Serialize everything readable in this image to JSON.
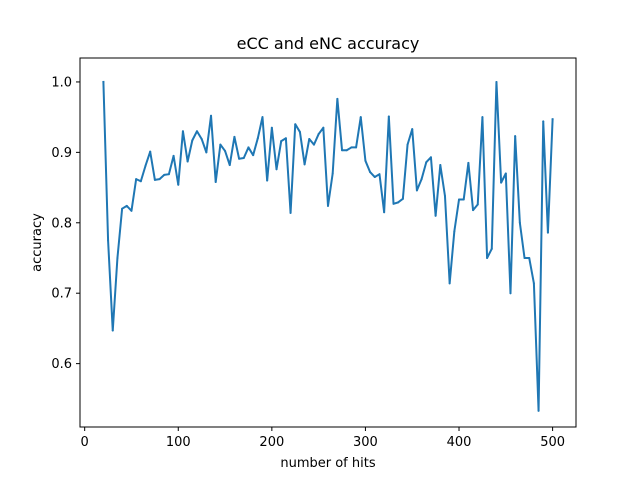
{
  "chart_data": {
    "type": "line",
    "title": "eCC and eNC accuracy",
    "xlabel": "number of hits",
    "ylabel": "accuracy",
    "xlim": [
      -5,
      525
    ],
    "ylim": [
      0.51,
      1.034
    ],
    "xticks": [
      0,
      100,
      200,
      300,
      400,
      500
    ],
    "yticks": [
      0.6,
      0.7,
      0.8,
      0.9,
      1.0
    ],
    "xtick_labels": [
      "0",
      "100",
      "200",
      "300",
      "400",
      "500"
    ],
    "ytick_labels": [
      "0.6",
      "0.7",
      "0.8",
      "0.9",
      "1.0"
    ],
    "grid": false,
    "legend": "none",
    "series": [
      {
        "color": "#1f77b4",
        "x": [
          20,
          25,
          30,
          35,
          40,
          45,
          50,
          55,
          60,
          65,
          70,
          75,
          80,
          85,
          90,
          95,
          100,
          105,
          110,
          115,
          120,
          125,
          130,
          135,
          140,
          145,
          150,
          155,
          160,
          165,
          170,
          175,
          180,
          185,
          190,
          195,
          200,
          205,
          210,
          215,
          220,
          225,
          230,
          235,
          240,
          245,
          250,
          255,
          260,
          265,
          270,
          275,
          280,
          285,
          290,
          295,
          300,
          305,
          310,
          315,
          320,
          325,
          330,
          335,
          340,
          345,
          350,
          355,
          360,
          365,
          370,
          375,
          380,
          385,
          390,
          395,
          400,
          405,
          410,
          415,
          420,
          425,
          430,
          435,
          440,
          445,
          450,
          455,
          460,
          465,
          470,
          475,
          480,
          485,
          490,
          495,
          500
        ],
        "y": [
          1.0,
          0.775,
          0.647,
          0.75,
          0.82,
          0.824,
          0.817,
          0.862,
          0.859,
          0.881,
          0.901,
          0.861,
          0.862,
          0.868,
          0.869,
          0.895,
          0.854,
          0.93,
          0.887,
          0.917,
          0.93,
          0.919,
          0.9,
          0.952,
          0.858,
          0.911,
          0.902,
          0.882,
          0.922,
          0.891,
          0.892,
          0.907,
          0.896,
          0.92,
          0.95,
          0.86,
          0.935,
          0.876,
          0.916,
          0.92,
          0.814,
          0.94,
          0.929,
          0.883,
          0.919,
          0.911,
          0.926,
          0.935,
          0.824,
          0.87,
          0.976,
          0.903,
          0.903,
          0.907,
          0.907,
          0.95,
          0.888,
          0.872,
          0.865,
          0.869,
          0.815,
          0.951,
          0.827,
          0.829,
          0.834,
          0.911,
          0.933,
          0.846,
          0.862,
          0.886,
          0.893,
          0.81,
          0.882,
          0.838,
          0.714,
          0.788,
          0.833,
          0.833,
          0.885,
          0.818,
          0.826,
          0.95,
          0.75,
          0.763,
          1.0,
          0.857,
          0.87,
          0.7,
          0.923,
          0.8,
          0.75,
          0.75,
          0.714,
          0.533,
          0.944,
          0.786,
          0.947
        ]
      }
    ]
  }
}
